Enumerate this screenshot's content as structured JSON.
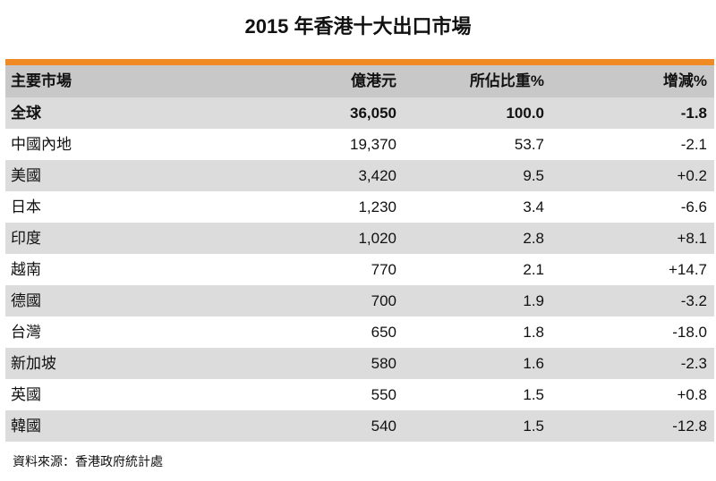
{
  "title": "2015 年香港十大出口市場",
  "table": {
    "headers": [
      "主要市場",
      "億港元",
      "所佔比重%",
      "增減%"
    ],
    "rows": [
      [
        "全球",
        "36,050",
        "100.0",
        "-1.8"
      ],
      [
        "中國內地",
        "19,370",
        "53.7",
        "-2.1"
      ],
      [
        "美國",
        "3,420",
        "9.5",
        "+0.2"
      ],
      [
        "日本",
        "1,230",
        "3.4",
        "-6.6"
      ],
      [
        "印度",
        "1,020",
        "2.8",
        "+8.1"
      ],
      [
        "越南",
        "770",
        "2.1",
        "+14.7"
      ],
      [
        "德國",
        "700",
        "1.9",
        "-3.2"
      ],
      [
        "台灣",
        "650",
        "1.8",
        "-18.0"
      ],
      [
        "新加坡",
        "580",
        "1.6",
        "-2.3"
      ],
      [
        "英國",
        "550",
        "1.5",
        "+0.8"
      ],
      [
        "韓國",
        "540",
        "1.5",
        "-12.8"
      ]
    ]
  },
  "source": "資料來源：香港政府統計處",
  "colors": {
    "accent": "#f08a24",
    "header_bg": "#c8c8c8",
    "row_shade": "#dcdcdc"
  }
}
